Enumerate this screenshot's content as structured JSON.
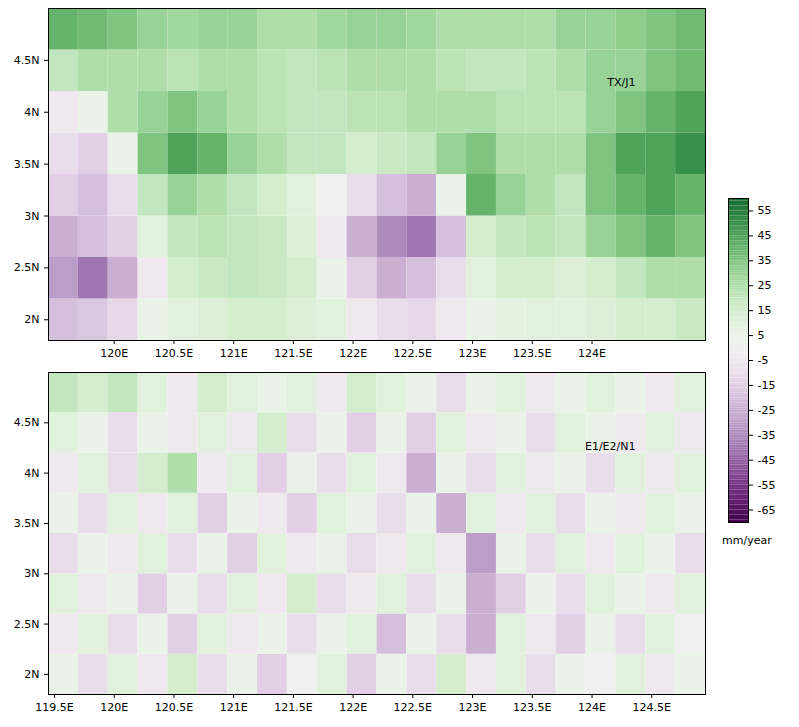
{
  "chart_data": {
    "type": "heatmap",
    "colorbar": {
      "lim": [
        -70,
        60
      ],
      "ticks": [
        55,
        45,
        35,
        25,
        15,
        5,
        -5,
        -15,
        -25,
        -35,
        -45,
        -55,
        -65
      ],
      "label": "mm/year"
    },
    "panels": [
      {
        "title": "TX/J1",
        "xlim": [
          119.45,
          124.95
        ],
        "ylim": [
          1.8,
          5.0
        ],
        "xticks": [
          {
            "value": 120,
            "label": "120E"
          },
          {
            "value": 120.5,
            "label": "120.5E"
          },
          {
            "value": 121,
            "label": "121E"
          },
          {
            "value": 121.5,
            "label": "121.5E"
          },
          {
            "value": 122,
            "label": "122E"
          },
          {
            "value": 122.5,
            "label": "122.5E"
          },
          {
            "value": 123,
            "label": "123E"
          },
          {
            "value": 123.5,
            "label": "123.5E"
          },
          {
            "value": 124,
            "label": "124E"
          }
        ],
        "yticks": [
          {
            "value": 2,
            "label": "2N"
          },
          {
            "value": 2.5,
            "label": "2.5N"
          },
          {
            "value": 3,
            "label": "3N"
          },
          {
            "value": 3.5,
            "label": "3.5N"
          },
          {
            "value": 4,
            "label": "4N"
          },
          {
            "value": 4.5,
            "label": "4.5N"
          }
        ],
        "cell_x": [
          119.575,
          119.825,
          120.075,
          120.325,
          120.575,
          120.825,
          121.075,
          121.325,
          121.575,
          121.825,
          122.075,
          122.325,
          122.575,
          122.825,
          123.075,
          123.325,
          123.575,
          123.825,
          124.075,
          124.325,
          124.575,
          124.825
        ],
        "cell_y": [
          2.0,
          2.4,
          2.8,
          3.2,
          3.6,
          4.0,
          4.4,
          4.8
        ],
        "cells": [
          [
            -20,
            -18,
            -12,
            5,
            10,
            12,
            15,
            15,
            12,
            10,
            -5,
            -10,
            -12,
            -5,
            5,
            8,
            10,
            10,
            12,
            15,
            15,
            18
          ],
          [
            -30,
            -40,
            -25,
            -5,
            15,
            18,
            20,
            18,
            15,
            5,
            -15,
            -25,
            -20,
            -10,
            10,
            15,
            15,
            12,
            15,
            20,
            25,
            25
          ],
          [
            -25,
            -20,
            -15,
            10,
            20,
            22,
            20,
            18,
            12,
            -5,
            -25,
            -35,
            -40,
            -20,
            15,
            20,
            22,
            20,
            30,
            35,
            40,
            35
          ],
          [
            -15,
            -20,
            -10,
            20,
            30,
            25,
            20,
            15,
            10,
            0,
            -10,
            -20,
            -25,
            5,
            40,
            30,
            25,
            20,
            35,
            40,
            45,
            40
          ],
          [
            -10,
            -15,
            5,
            35,
            45,
            40,
            30,
            25,
            20,
            20,
            15,
            18,
            20,
            30,
            35,
            25,
            25,
            25,
            35,
            45,
            45,
            50
          ],
          [
            -5,
            5,
            25,
            30,
            35,
            30,
            25,
            22,
            20,
            20,
            22,
            22,
            25,
            25,
            25,
            22,
            22,
            22,
            30,
            35,
            40,
            45
          ],
          [
            20,
            25,
            25,
            25,
            22,
            25,
            25,
            22,
            20,
            22,
            25,
            25,
            25,
            22,
            20,
            20,
            22,
            25,
            30,
            30,
            35,
            38
          ],
          [
            40,
            38,
            35,
            30,
            28,
            30,
            30,
            25,
            25,
            28,
            30,
            30,
            28,
            25,
            25,
            25,
            25,
            30,
            30,
            32,
            35,
            38
          ]
        ]
      },
      {
        "title": "E1/E2/N1",
        "xlim": [
          119.45,
          124.95
        ],
        "ylim": [
          1.8,
          5.0
        ],
        "xticks": [
          {
            "value": 119.5,
            "label": "119.5E"
          },
          {
            "value": 120,
            "label": "120E"
          },
          {
            "value": 120.5,
            "label": "120.5E"
          },
          {
            "value": 121,
            "label": "121E"
          },
          {
            "value": 121.5,
            "label": "121.5E"
          },
          {
            "value": 122,
            "label": "122E"
          },
          {
            "value": 122.5,
            "label": "122.5E"
          },
          {
            "value": 123,
            "label": "123E"
          },
          {
            "value": 123.5,
            "label": "123.5E"
          },
          {
            "value": 124,
            "label": "124E"
          },
          {
            "value": 124.5,
            "label": "124.5E"
          }
        ],
        "yticks": [
          {
            "value": 2,
            "label": "2N"
          },
          {
            "value": 2.5,
            "label": "2.5N"
          },
          {
            "value": 3,
            "label": "3N"
          },
          {
            "value": 3.5,
            "label": "3.5N"
          },
          {
            "value": 4,
            "label": "4N"
          },
          {
            "value": 4.5,
            "label": "4.5N"
          }
        ],
        "cell_x": [
          119.575,
          119.825,
          120.075,
          120.325,
          120.575,
          120.825,
          121.075,
          121.325,
          121.575,
          121.825,
          122.075,
          122.325,
          122.575,
          122.825,
          123.075,
          123.325,
          123.575,
          123.825,
          124.075,
          124.325,
          124.575,
          124.825
        ],
        "cell_y": [
          2.0,
          2.4,
          2.8,
          3.2,
          3.6,
          4.0,
          4.4,
          4.8
        ],
        "cells": [
          [
            5,
            -10,
            10,
            -5,
            15,
            -10,
            5,
            -15,
            0,
            10,
            -15,
            5,
            -10,
            15,
            -5,
            10,
            -10,
            5,
            0,
            10,
            -5,
            5
          ],
          [
            -5,
            10,
            -10,
            5,
            -15,
            10,
            -5,
            5,
            -10,
            5,
            10,
            -20,
            5,
            -10,
            -25,
            10,
            -5,
            -15,
            5,
            -10,
            10,
            0
          ],
          [
            10,
            -5,
            5,
            -15,
            5,
            -10,
            10,
            -5,
            15,
            -10,
            -5,
            10,
            -10,
            5,
            -25,
            -15,
            5,
            -10,
            10,
            5,
            -5,
            10
          ],
          [
            -10,
            5,
            -5,
            10,
            -10,
            5,
            -15,
            10,
            -5,
            5,
            -10,
            -5,
            10,
            -5,
            -30,
            5,
            -10,
            10,
            -5,
            10,
            5,
            -10
          ],
          [
            5,
            -10,
            10,
            -5,
            10,
            -15,
            5,
            -5,
            -15,
            10,
            5,
            -10,
            5,
            -25,
            10,
            -5,
            10,
            -10,
            5,
            -5,
            10,
            5
          ],
          [
            -5,
            10,
            -10,
            15,
            25,
            -5,
            10,
            -15,
            5,
            -10,
            10,
            -5,
            -25,
            5,
            -10,
            10,
            -5,
            5,
            -10,
            10,
            -5,
            10
          ],
          [
            10,
            5,
            -10,
            5,
            -5,
            10,
            -5,
            15,
            -10,
            5,
            -15,
            5,
            -15,
            10,
            -5,
            5,
            -10,
            10,
            5,
            -5,
            10,
            -5
          ],
          [
            20,
            15,
            20,
            10,
            -5,
            15,
            10,
            5,
            10,
            -5,
            15,
            10,
            5,
            -10,
            5,
            10,
            -5,
            5,
            10,
            5,
            -5,
            10
          ]
        ]
      }
    ]
  }
}
